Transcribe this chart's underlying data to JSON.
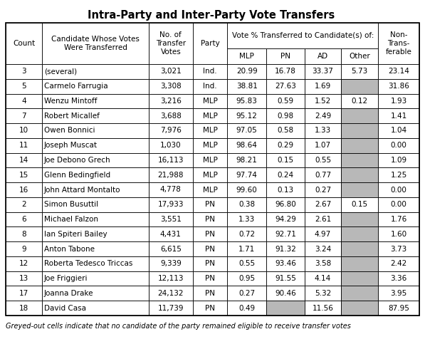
{
  "title": "Intra-Party and Inter-Party Vote Transfers",
  "footnote": "Greyed-out cells indicate that no candidate of the party remained eligible to receive transfer votes",
  "rows": [
    {
      "count": "3",
      "candidate": "(several)",
      "votes": "3,021",
      "party": "Ind.",
      "mlp": "20.99",
      "pn": "16.78",
      "ad": "33.37",
      "other": "5.73",
      "non": "23.14",
      "grey_other": false,
      "grey_pn": false,
      "grey_mlp": false
    },
    {
      "count": "5",
      "candidate": "Carmelo Farrugia",
      "votes": "3,308",
      "party": "Ind.",
      "mlp": "38.81",
      "pn": "27.63",
      "ad": "1.69",
      "other": "",
      "non": "31.86",
      "grey_other": true,
      "grey_pn": false,
      "grey_mlp": false
    },
    {
      "count": "4",
      "candidate": "Wenzu Mintoff",
      "votes": "3,216",
      "party": "MLP",
      "mlp": "95.83",
      "pn": "0.59",
      "ad": "1.52",
      "other": "0.12",
      "non": "1.93",
      "grey_other": false,
      "grey_pn": false,
      "grey_mlp": false
    },
    {
      "count": "7",
      "candidate": "Robert Micallef",
      "votes": "3,688",
      "party": "MLP",
      "mlp": "95.12",
      "pn": "0.98",
      "ad": "2.49",
      "other": "",
      "non": "1.41",
      "grey_other": true,
      "grey_pn": false,
      "grey_mlp": false
    },
    {
      "count": "10",
      "candidate": "Owen Bonnici",
      "votes": "7,976",
      "party": "MLP",
      "mlp": "97.05",
      "pn": "0.58",
      "ad": "1.33",
      "other": "",
      "non": "1.04",
      "grey_other": true,
      "grey_pn": false,
      "grey_mlp": false
    },
    {
      "count": "11",
      "candidate": "Joseph Muscat",
      "votes": "1,030",
      "party": "MLP",
      "mlp": "98.64",
      "pn": "0.29",
      "ad": "1.07",
      "other": "",
      "non": "0.00",
      "grey_other": true,
      "grey_pn": false,
      "grey_mlp": false
    },
    {
      "count": "14",
      "candidate": "Joe Debono Grech",
      "votes": "16,113",
      "party": "MLP",
      "mlp": "98.21",
      "pn": "0.15",
      "ad": "0.55",
      "other": "",
      "non": "1.09",
      "grey_other": true,
      "grey_pn": false,
      "grey_mlp": false
    },
    {
      "count": "15",
      "candidate": "Glenn Bedingfield",
      "votes": "21,988",
      "party": "MLP",
      "mlp": "97.74",
      "pn": "0.24",
      "ad": "0.77",
      "other": "",
      "non": "1.25",
      "grey_other": true,
      "grey_pn": false,
      "grey_mlp": false
    },
    {
      "count": "16",
      "candidate": "John Attard Montalto",
      "votes": "4,778",
      "party": "MLP",
      "mlp": "99.60",
      "pn": "0.13",
      "ad": "0.27",
      "other": "",
      "non": "0.00",
      "grey_other": true,
      "grey_pn": false,
      "grey_mlp": false
    },
    {
      "count": "2",
      "candidate": "Simon Busuttil",
      "votes": "17,933",
      "party": "PN",
      "mlp": "0.38",
      "pn": "96.80",
      "ad": "2.67",
      "other": "0.15",
      "non": "0.00",
      "grey_other": false,
      "grey_pn": false,
      "grey_mlp": false
    },
    {
      "count": "6",
      "candidate": "Michael Falzon",
      "votes": "3,551",
      "party": "PN",
      "mlp": "1.33",
      "pn": "94.29",
      "ad": "2.61",
      "other": "",
      "non": "1.76",
      "grey_other": true,
      "grey_pn": false,
      "grey_mlp": false
    },
    {
      "count": "8",
      "candidate": "Ian Spiteri Bailey",
      "votes": "4,431",
      "party": "PN",
      "mlp": "0.72",
      "pn": "92.71",
      "ad": "4.97",
      "other": "",
      "non": "1.60",
      "grey_other": true,
      "grey_pn": false,
      "grey_mlp": false
    },
    {
      "count": "9",
      "candidate": "Anton Tabone",
      "votes": "6,615",
      "party": "PN",
      "mlp": "1.71",
      "pn": "91.32",
      "ad": "3.24",
      "other": "",
      "non": "3.73",
      "grey_other": true,
      "grey_pn": false,
      "grey_mlp": false
    },
    {
      "count": "12",
      "candidate": "Roberta Tedesco Triccas",
      "votes": "9,339",
      "party": "PN",
      "mlp": "0.55",
      "pn": "93.46",
      "ad": "3.58",
      "other": "",
      "non": "2.42",
      "grey_other": true,
      "grey_pn": false,
      "grey_mlp": false
    },
    {
      "count": "13",
      "candidate": "Joe Friggieri",
      "votes": "12,113",
      "party": "PN",
      "mlp": "0.95",
      "pn": "91.55",
      "ad": "4.14",
      "other": "",
      "non": "3.36",
      "grey_other": true,
      "grey_pn": false,
      "grey_mlp": false
    },
    {
      "count": "17",
      "candidate": "Joanna Drake",
      "votes": "24,132",
      "party": "PN",
      "mlp": "0.27",
      "pn": "90.46",
      "ad": "5.32",
      "other": "",
      "non": "3.95",
      "grey_other": true,
      "grey_pn": false,
      "grey_mlp": false
    },
    {
      "count": "18",
      "candidate": "David Casa",
      "votes": "11,739",
      "party": "PN",
      "mlp": "0.49",
      "pn": "",
      "ad": "11.56",
      "other": "",
      "non": "87.95",
      "grey_other": true,
      "grey_pn": true,
      "grey_mlp": false
    }
  ],
  "grey_color": "#b8b8b8",
  "white_color": "#ffffff",
  "title_fontsize": 10.5,
  "body_fontsize": 7.5,
  "header_fontsize": 7.5,
  "footnote_fontsize": 7.0
}
